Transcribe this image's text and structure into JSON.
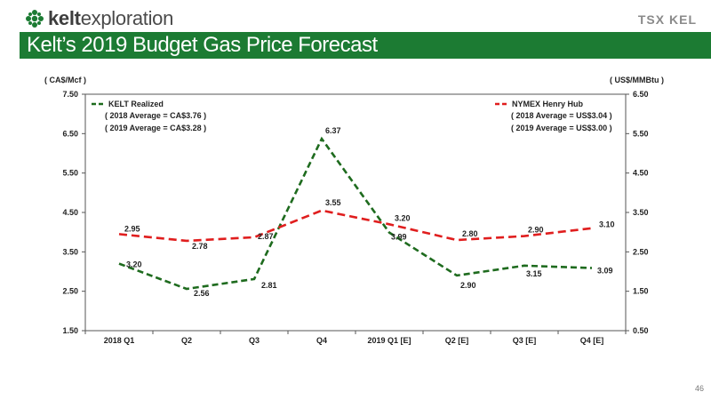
{
  "header": {
    "logo_text_bold": "kelt",
    "logo_text_rest": "exploration",
    "exchange_label": "TSX KEL",
    "title": "Kelt’s 2019 Budget Gas Price Forecast",
    "page_number": "46"
  },
  "colors": {
    "brand_green": "#1c7b33",
    "kelt_series": "#1e6b1e",
    "nymex_series": "#e01e1e"
  },
  "chart_data": {
    "type": "line",
    "categories": [
      "2018 Q1",
      "Q2",
      "Q3",
      "Q4",
      "2019 Q1 [E]",
      "Q2 [E]",
      "Q3 [E]",
      "Q4 [E]"
    ],
    "y_left": {
      "label": "( CA$/Mcf )",
      "ylim": [
        1.5,
        7.5
      ],
      "ticks": [
        "1.50",
        "2.50",
        "3.50",
        "4.50",
        "5.50",
        "6.50",
        "7.50"
      ]
    },
    "y_right": {
      "label": "( US$/MMBtu )",
      "ylim": [
        0.5,
        6.5
      ],
      "ticks": [
        "0.50",
        "1.50",
        "2.50",
        "3.50",
        "4.50",
        "5.50",
        "6.50"
      ]
    },
    "grid": false,
    "series": [
      {
        "name": "KELT Realized",
        "axis": "left",
        "style": "dashed",
        "values": [
          3.2,
          2.56,
          2.81,
          6.37,
          3.99,
          2.9,
          3.15,
          3.09
        ],
        "labels": [
          "3.20",
          "2.56",
          "2.81",
          "6.37",
          "3.99",
          "2.90",
          "3.15",
          "3.09"
        ],
        "legend_notes": [
          "( 2018 Average = CA$3.76 )",
          "( 2019 Average = CA$3.28 )"
        ]
      },
      {
        "name": "NYMEX Henry Hub",
        "axis": "right",
        "style": "dashed",
        "values": [
          2.95,
          2.78,
          2.87,
          3.55,
          3.2,
          2.8,
          2.9,
          3.1
        ],
        "labels": [
          "2.95",
          "2.78",
          "2.87",
          "3.55",
          "3.20",
          "2.80",
          "2.90",
          "3.10"
        ],
        "legend_notes": [
          "( 2018 Average = US$3.04 )",
          "( 2019 Average = US$3.00 )"
        ]
      }
    ]
  }
}
